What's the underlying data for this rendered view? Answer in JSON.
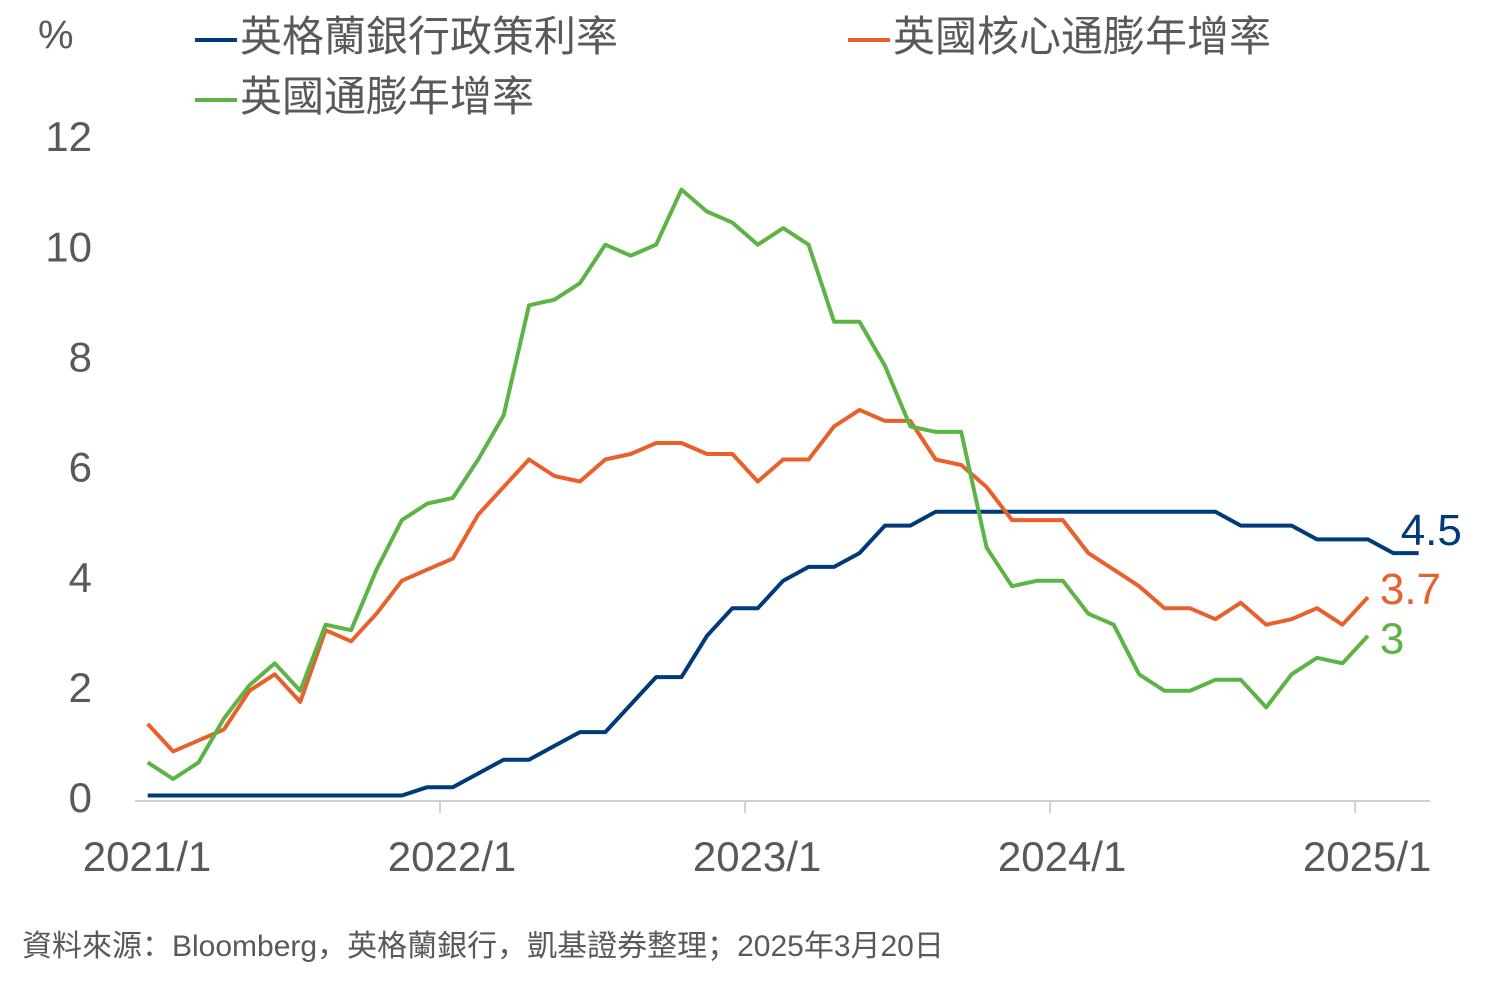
{
  "chart_data": {
    "type": "line",
    "ylabel": "%",
    "categories": [
      "2021/1",
      null,
      null,
      null,
      null,
      null,
      null,
      null,
      null,
      null,
      null,
      null,
      "2022/1",
      null,
      null,
      null,
      null,
      null,
      null,
      null,
      null,
      null,
      null,
      null,
      "2023/1",
      null,
      null,
      null,
      null,
      null,
      null,
      null,
      null,
      null,
      null,
      null,
      "2024/1",
      null,
      null,
      null,
      null,
      null,
      null,
      null,
      null,
      null,
      null,
      null,
      "2025/1",
      null,
      null
    ],
    "series": [
      {
        "name": "英格蘭銀行政策利率",
        "color": "#003a78",
        "values": [
          0.1,
          0.1,
          0.1,
          0.1,
          0.1,
          0.1,
          0.1,
          0.1,
          0.1,
          0.1,
          0.1,
          0.25,
          0.25,
          0.5,
          0.75,
          0.75,
          1.0,
          1.25,
          1.25,
          1.75,
          2.25,
          2.25,
          3.0,
          3.5,
          3.5,
          4.0,
          4.25,
          4.25,
          4.5,
          5.0,
          5.0,
          5.25,
          5.25,
          5.25,
          5.25,
          5.25,
          5.25,
          5.25,
          5.25,
          5.25,
          5.25,
          5.25,
          5.25,
          5.0,
          5.0,
          5.0,
          4.75,
          4.75,
          4.75,
          4.5,
          4.5
        ]
      },
      {
        "name": "英國核心通膨年增率",
        "color": "#e8602c",
        "values": [
          1.4,
          0.9,
          1.1,
          1.3,
          2.0,
          2.3,
          1.8,
          3.1,
          2.9,
          3.4,
          4.0,
          4.2,
          4.4,
          5.2,
          5.7,
          6.2,
          5.9,
          5.8,
          6.2,
          6.3,
          6.5,
          6.5,
          6.3,
          6.3,
          5.8,
          6.2,
          6.2,
          6.8,
          7.1,
          6.9,
          6.9,
          6.2,
          6.1,
          5.7,
          5.1,
          5.1,
          5.1,
          4.5,
          4.2,
          3.9,
          3.5,
          3.5,
          3.3,
          3.6,
          3.2,
          3.3,
          3.5,
          3.2,
          3.7,
          null,
          null
        ]
      },
      {
        "name": "英國通膨年增率",
        "color": "#5db345",
        "values": [
          0.7,
          0.4,
          0.7,
          1.5,
          2.1,
          2.5,
          2.0,
          3.2,
          3.1,
          4.2,
          5.1,
          5.4,
          5.5,
          6.2,
          7.0,
          9.0,
          9.1,
          9.4,
          10.1,
          9.9,
          10.1,
          11.1,
          10.7,
          10.5,
          10.1,
          10.4,
          10.1,
          8.7,
          8.7,
          7.9,
          6.8,
          6.7,
          6.7,
          4.6,
          3.9,
          4.0,
          4.0,
          3.4,
          3.2,
          2.3,
          2.0,
          2.0,
          2.2,
          2.2,
          1.7,
          2.3,
          2.6,
          2.5,
          3.0,
          null,
          null
        ]
      }
    ],
    "ylim": [
      0,
      12
    ],
    "yticks": [
      0,
      2,
      4,
      6,
      8,
      10,
      12
    ],
    "source": "資料來源：Bloomberg，英格蘭銀行，凱基證券整理；2025年3月20日"
  }
}
